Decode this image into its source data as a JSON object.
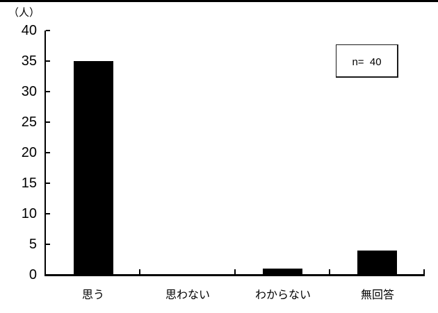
{
  "page": {
    "background": "#ffffff",
    "top_rule_color": "#000000"
  },
  "chart_data": {
    "type": "bar",
    "title": "",
    "unit_label": "（人）",
    "categories": [
      "思う",
      "思わない",
      "わからない",
      "無回答"
    ],
    "values": [
      35,
      0,
      1,
      4
    ],
    "y_ticks": [
      0,
      5,
      10,
      15,
      20,
      25,
      30,
      35,
      40
    ],
    "ylim": [
      0,
      40
    ],
    "xlabel": "",
    "ylabel": "（人）",
    "bar_color": "#000000",
    "axis_color": "#000000",
    "grid": false,
    "legend": {
      "text": "n=  40",
      "n_value": 40,
      "position": "top-right"
    }
  }
}
